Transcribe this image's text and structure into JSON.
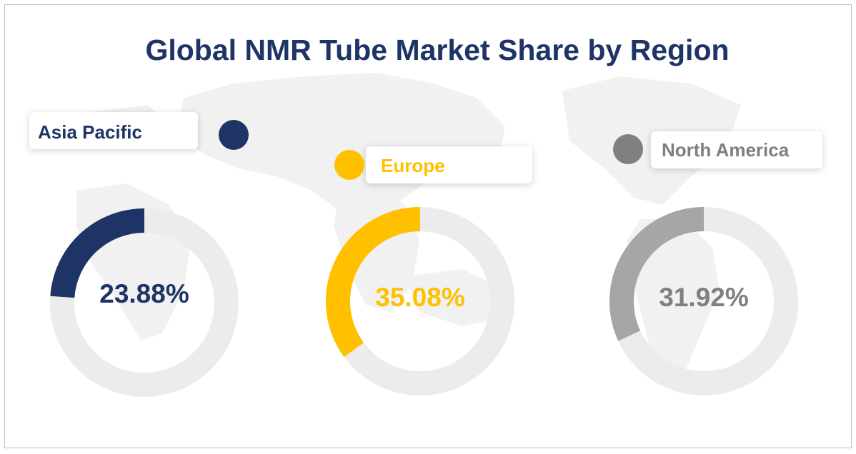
{
  "title": "Global NMR Tube Market Share by Region",
  "colors": {
    "asia_pacific": "#1f3466",
    "europe": "#ffc000",
    "north_america": "#a6a6a6",
    "track": "#ececec",
    "title": "#1f3466"
  },
  "chart_data": {
    "type": "pie",
    "title": "Global NMR Tube Market Share by Region",
    "series": [
      {
        "name": "Asia Pacific",
        "value": 23.88,
        "label": "23.88%",
        "color": "#1f3466",
        "label_color": "#1f3466"
      },
      {
        "name": "Europe",
        "value": 35.08,
        "label": "35.08%",
        "color": "#ffc000",
        "label_color": "#ffc000"
      },
      {
        "name": "North America",
        "value": 31.92,
        "label": "31.92%",
        "color": "#a6a6a6",
        "label_color": "#7f7f7f"
      }
    ]
  }
}
